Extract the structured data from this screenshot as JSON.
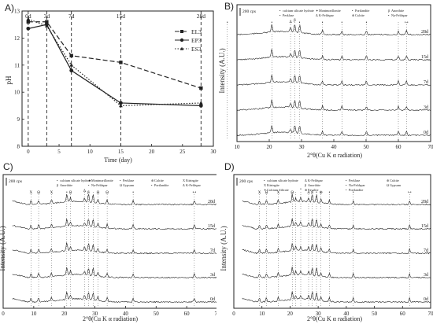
{
  "panels": {
    "A": {
      "letter": "A)",
      "ylabel": "pH",
      "xlabel": "Time (day)",
      "xticks": [
        0,
        5,
        10,
        15,
        20,
        25,
        30
      ],
      "yticks": [
        8,
        9,
        10,
        11,
        12,
        13
      ],
      "xlim": [
        -1,
        30
      ],
      "ylim": [
        8,
        13
      ],
      "vlines": [
        {
          "x": 0,
          "label": "0d"
        },
        {
          "x": 3,
          "label": "3d"
        },
        {
          "x": 7,
          "label": "7d"
        },
        {
          "x": 15,
          "label": "15d"
        },
        {
          "x": 28,
          "label": "28d"
        }
      ]
    },
    "B": {
      "letter": "B)",
      "ylabel": "Intensity (A.U.)",
      "xlabel": "2°θ(Cu K α radiation)",
      "scale": "200 cps",
      "xticks": [
        10,
        20,
        30,
        40,
        50,
        60,
        70
      ],
      "curves": [
        "28d",
        "15d",
        "7d",
        "3d",
        "0d"
      ],
      "legend": [
        {
          "sym": "•",
          "text": "calcium silicate hydrate"
        },
        {
          "sym": "✦",
          "text": "Montmorillonite"
        },
        {
          "sym": "•",
          "text": "Portlandite"
        },
        {
          "sym": "β",
          "text": "Anorthite"
        },
        {
          "sym": "•",
          "text": "Perklase"
        },
        {
          "sym": "Δ",
          "text": "K-Feldspar"
        },
        {
          "sym": "⊕",
          "text": "Calcite"
        },
        {
          "sym": "•",
          "text": "Na-Feldspar"
        }
      ]
    },
    "C": {
      "letter": "C)",
      "ylabel": "Intensity (A.U.)",
      "xlabel": "2°θ(Cu K α radiation)",
      "scale": "200 cps",
      "xticks": [
        0,
        10,
        20,
        30,
        40,
        50,
        60,
        70
      ],
      "curves": [
        "28d",
        "15d",
        "7d",
        "3d",
        "0d"
      ],
      "legend": [
        {
          "sym": "•",
          "text": "calcium silicate hydrate"
        },
        {
          "sym": "✦",
          "text": "Montmorillonite"
        },
        {
          "sym": "•",
          "text": "Perklase"
        },
        {
          "sym": "⊕",
          "text": "Calcite"
        },
        {
          "sym": "X",
          "text": "Ettringite"
        },
        {
          "sym": "β",
          "text": "Anorthite"
        },
        {
          "sym": "•",
          "text": "Na-Feldspar"
        },
        {
          "sym": "Ω",
          "text": "Gypsum"
        },
        {
          "sym": "•",
          "text": "Portlandite"
        },
        {
          "sym": "Δ",
          "text": "K-Feldspar"
        }
      ]
    },
    "D": {
      "letter": "D)",
      "ylabel": "Intensity (A.U.)",
      "xlabel": "2°θ(Cu K α radiation)",
      "scale": "200 cps",
      "xticks": [
        0,
        10,
        20,
        30,
        40,
        50,
        60,
        70
      ],
      "curves": [
        "28d",
        "15d",
        "7d",
        "3d",
        "0d"
      ],
      "legend": [
        {
          "sym": "•",
          "text": "calcium silicate hydrate"
        },
        {
          "sym": "Δ",
          "text": "K-Feldspar"
        },
        {
          "sym": "•",
          "text": "Perklase"
        },
        {
          "sym": "⊕",
          "text": "Calcite"
        },
        {
          "sym": "X",
          "text": "Ettringite"
        },
        {
          "sym": "β",
          "text": "Anorthite"
        },
        {
          "sym": "•",
          "text": "Na-Feldspar"
        },
        {
          "sym": "Ω",
          "text": "Gypsum"
        },
        {
          "sym": "✦",
          "text": "Calcium Silicate"
        },
        {
          "sym": "⊕",
          "text": "Fayalite"
        },
        {
          "sym": "•",
          "text": "Portlandite"
        }
      ]
    }
  },
  "chart_data": [
    {
      "type": "line",
      "title": "",
      "xlabel": "Time (day)",
      "ylabel": "pH",
      "xlim": [
        -1,
        30
      ],
      "ylim": [
        8,
        13
      ],
      "grid": false,
      "legend_position": "top-right",
      "x": [
        0,
        3,
        7,
        15,
        28
      ],
      "series": [
        {
          "name": "EL3",
          "style": "dashed",
          "marker": "square",
          "color": "#222222",
          "values": [
            12.6,
            12.6,
            11.35,
            11.1,
            10.15
          ]
        },
        {
          "name": "EP3",
          "style": "solid",
          "marker": "circle",
          "color": "#222222",
          "values": [
            12.35,
            12.5,
            10.8,
            9.6,
            9.5
          ]
        },
        {
          "name": "ES3",
          "style": "dotted",
          "marker": "triangle",
          "color": "#222222",
          "values": [
            12.7,
            12.45,
            11.0,
            9.5,
            9.6
          ]
        }
      ]
    },
    {
      "type": "line",
      "title": "",
      "xlabel": "2°θ(Cu K α radiation)",
      "ylabel": "Intensity (A.U.)",
      "xlim": [
        5,
        70
      ],
      "series_labels": [
        "28d",
        "15d",
        "7d",
        "3d",
        "0d"
      ],
      "major_peaks_2theta": [
        7.0,
        20.8,
        26.6,
        27.9,
        29.4,
        36.5,
        42.5,
        50.1,
        60.0,
        62.5
      ]
    },
    {
      "type": "line",
      "title": "",
      "xlabel": "2°θ(Cu K α radiation)",
      "ylabel": "Intensity (A.U.)",
      "xlim": [
        0,
        70
      ],
      "series_labels": [
        "28d",
        "15d",
        "7d",
        "3d",
        "0d"
      ],
      "major_peaks_2theta": [
        9.1,
        11.6,
        15.8,
        20.8,
        22.0,
        26.6,
        27.9,
        29.4,
        31.0,
        34.0,
        42.5,
        62.5
      ]
    },
    {
      "type": "line",
      "title": "",
      "xlabel": "2°θ(Cu K α radiation)",
      "ylabel": "Intensity (A.U.)",
      "xlim": [
        0,
        70
      ],
      "series_labels": [
        "28d",
        "15d",
        "7d",
        "3d",
        "0d"
      ],
      "major_peaks_2theta": [
        9.1,
        11.6,
        15.8,
        20.8,
        22.0,
        23.8,
        26.6,
        27.9,
        29.4,
        31.0,
        34.0,
        42.5,
        62.5
      ]
    }
  ]
}
